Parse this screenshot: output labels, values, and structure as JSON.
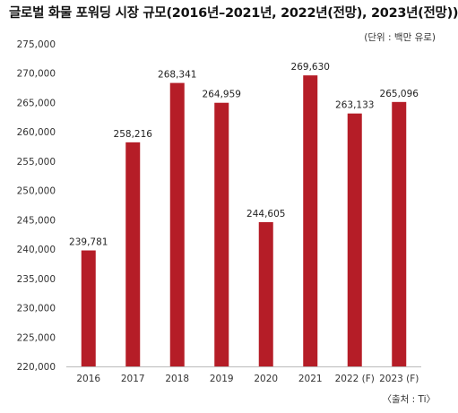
{
  "chart_data": {
    "type": "bar",
    "title": "글로벌 화물 포워딩 시장 규모(2016년–2021년, 2022년(전망), 2023년(전망))",
    "unit_note": "(단위 : 백만 유로)",
    "source": "〈출처 : Ti〉",
    "categories": [
      "2016",
      "2017",
      "2018",
      "2019",
      "2020",
      "2021",
      "2022 (F)",
      "2023 (F)"
    ],
    "values": [
      239781,
      258216,
      268341,
      264959,
      244605,
      269630,
      263133,
      265096
    ],
    "value_labels": [
      "239,781",
      "258,216",
      "268,341",
      "264,959",
      "244,605",
      "269,630",
      "263,133",
      "265,096"
    ],
    "yticks": [
      "220,000",
      "225,000",
      "230,000",
      "235,000",
      "240,000",
      "245,000",
      "250,000",
      "255,000",
      "260,000",
      "265,000",
      "270,000",
      "275,000"
    ],
    "ylim": [
      220000,
      275000
    ],
    "bar_color": "#b51d27",
    "grid": false,
    "legend": "none"
  }
}
